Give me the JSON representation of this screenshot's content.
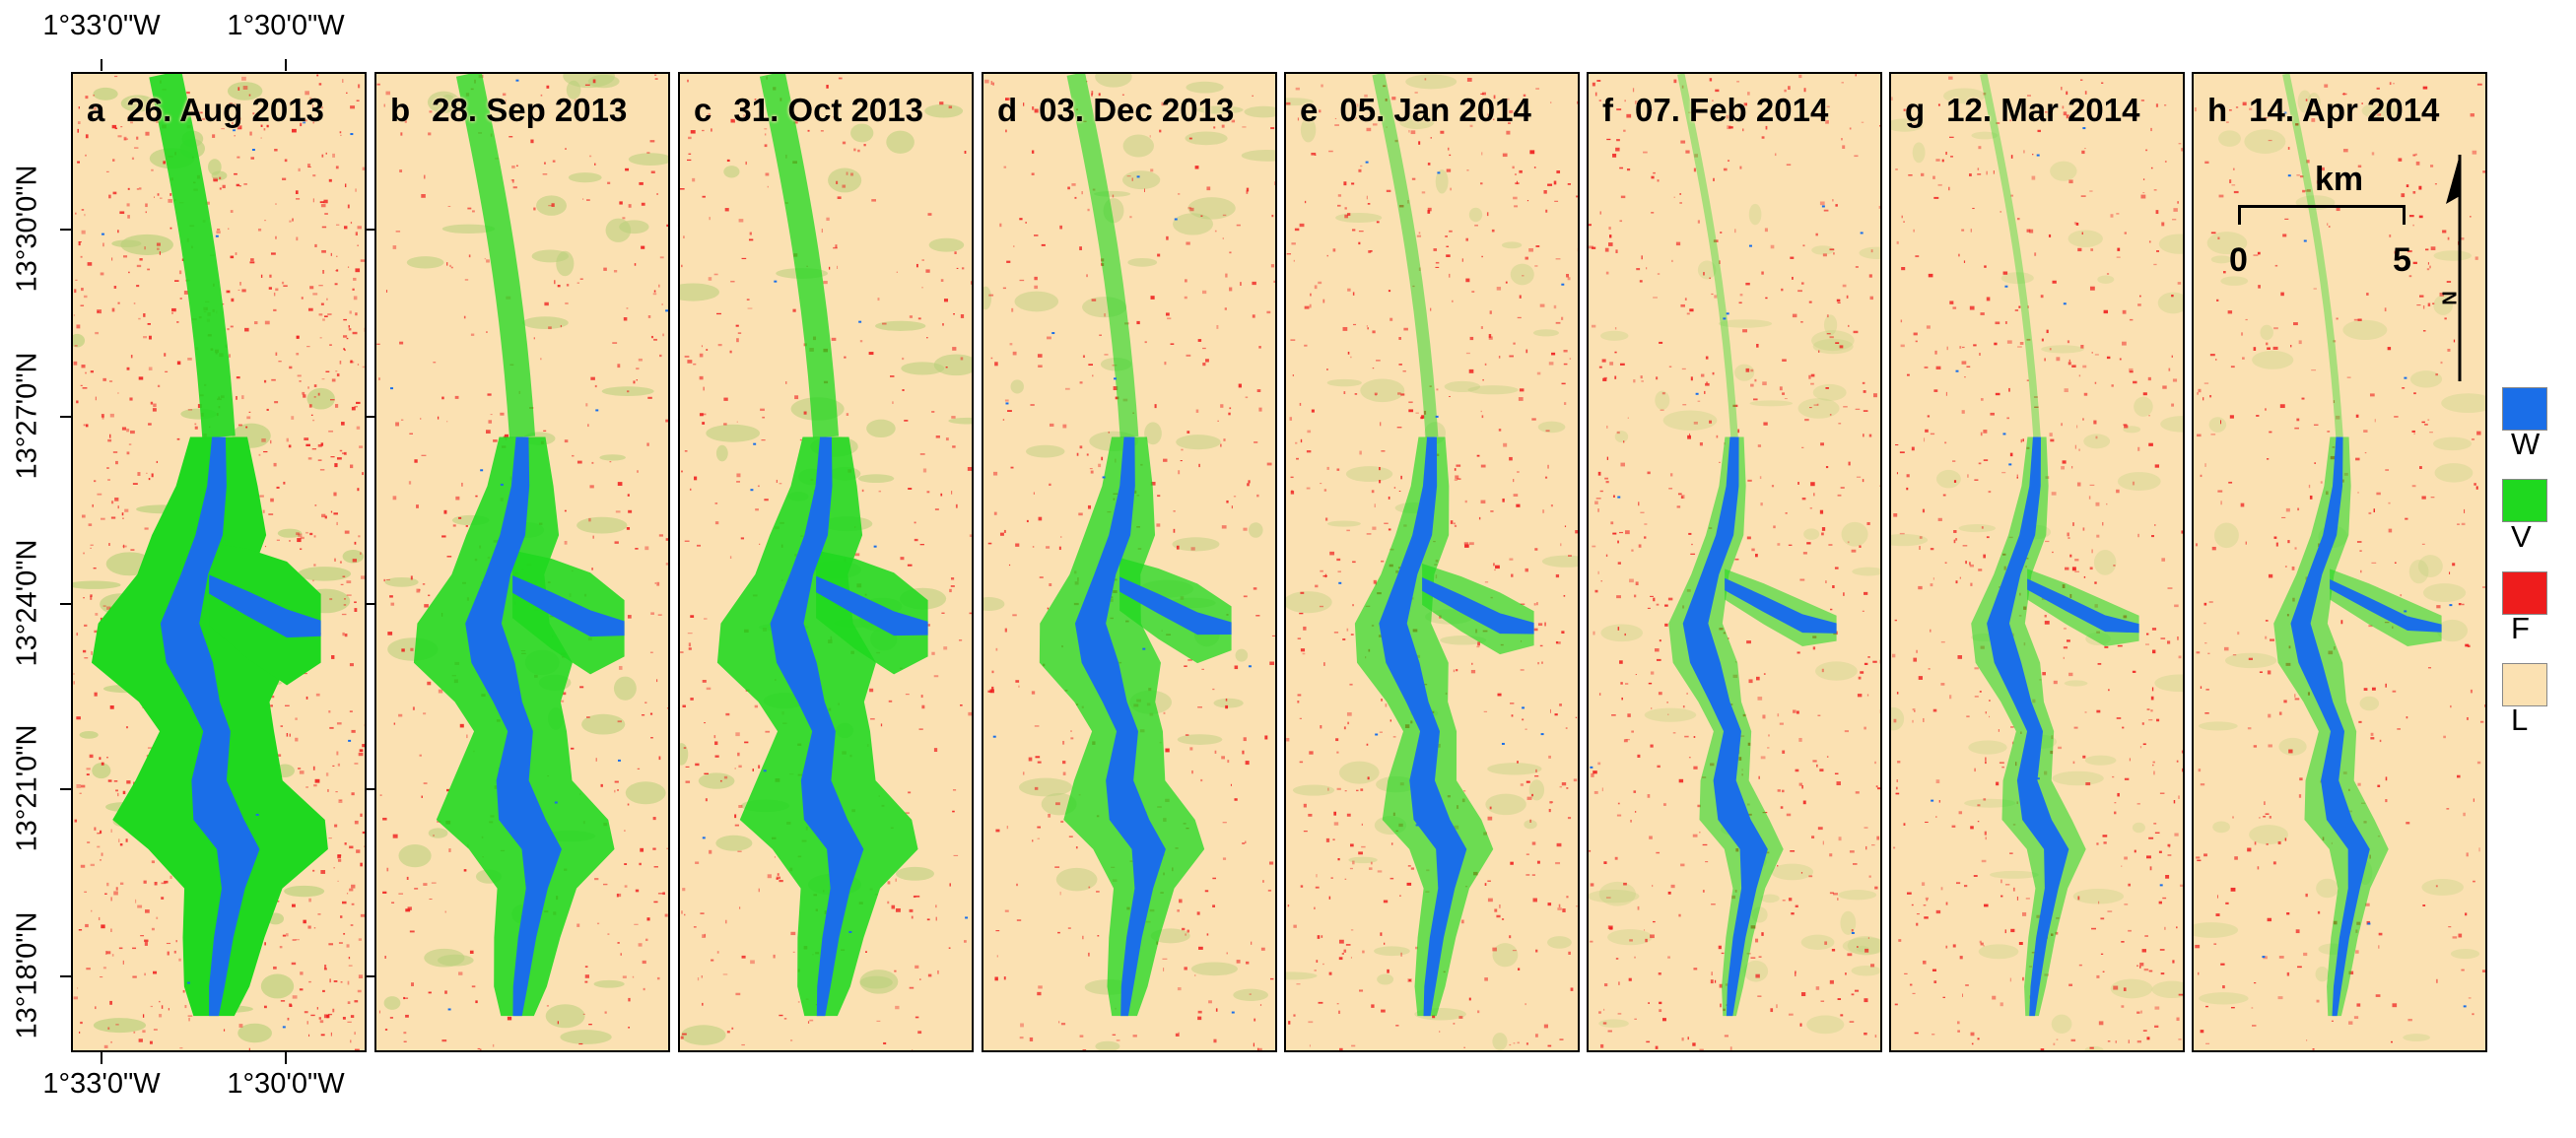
{
  "figure": {
    "top_lon_labels": [
      "1°33'0\"W",
      "1°30'0\"W"
    ],
    "bottom_lon_labels": [
      "1°33'0\"W",
      "1°30'0\"W"
    ],
    "lat_labels": [
      "13°30'0\"N",
      "13°27'0\"N",
      "13°24'0\"N",
      "13°21'0\"N",
      "13°18'0\"N"
    ]
  },
  "panels": [
    {
      "letter": "a",
      "date": "26. Aug 2013",
      "vegetation_extent": "very-high",
      "flood_extent": "very-high"
    },
    {
      "letter": "b",
      "date": "28. Sep 2013",
      "vegetation_extent": "high",
      "flood_extent": "low"
    },
    {
      "letter": "c",
      "date": "31. Oct 2013",
      "vegetation_extent": "high",
      "flood_extent": "low"
    },
    {
      "letter": "d",
      "date": "03. Dec 2013",
      "vegetation_extent": "medium",
      "flood_extent": "low"
    },
    {
      "letter": "e",
      "date": "05. Jan 2014",
      "vegetation_extent": "low",
      "flood_extent": "medium"
    },
    {
      "letter": "f",
      "date": "07. Feb 2014",
      "vegetation_extent": "very-low",
      "flood_extent": "medium"
    },
    {
      "letter": "g",
      "date": "12. Mar 2014",
      "vegetation_extent": "very-low",
      "flood_extent": "medium"
    },
    {
      "letter": "h",
      "date": "14. Apr 2014",
      "vegetation_extent": "very-low",
      "flood_extent": "low"
    }
  ],
  "scale_bar": {
    "unit": "km",
    "start": "0",
    "end": "5"
  },
  "north_arrow": {
    "label": "N"
  },
  "legend": [
    {
      "code": "W",
      "color": "#1a6ee8"
    },
    {
      "code": "V",
      "color": "#1fd81f"
    },
    {
      "code": "F",
      "color": "#ee1c1c"
    },
    {
      "code": "L",
      "color": "#fbe1b2"
    }
  ],
  "colors": {
    "water": "#1a6ee8",
    "vegetation": "#1fd81f",
    "flooded": "#ee1c1c",
    "land": "#fbe1b2",
    "dry_vegetation": "#b8cf7a"
  }
}
